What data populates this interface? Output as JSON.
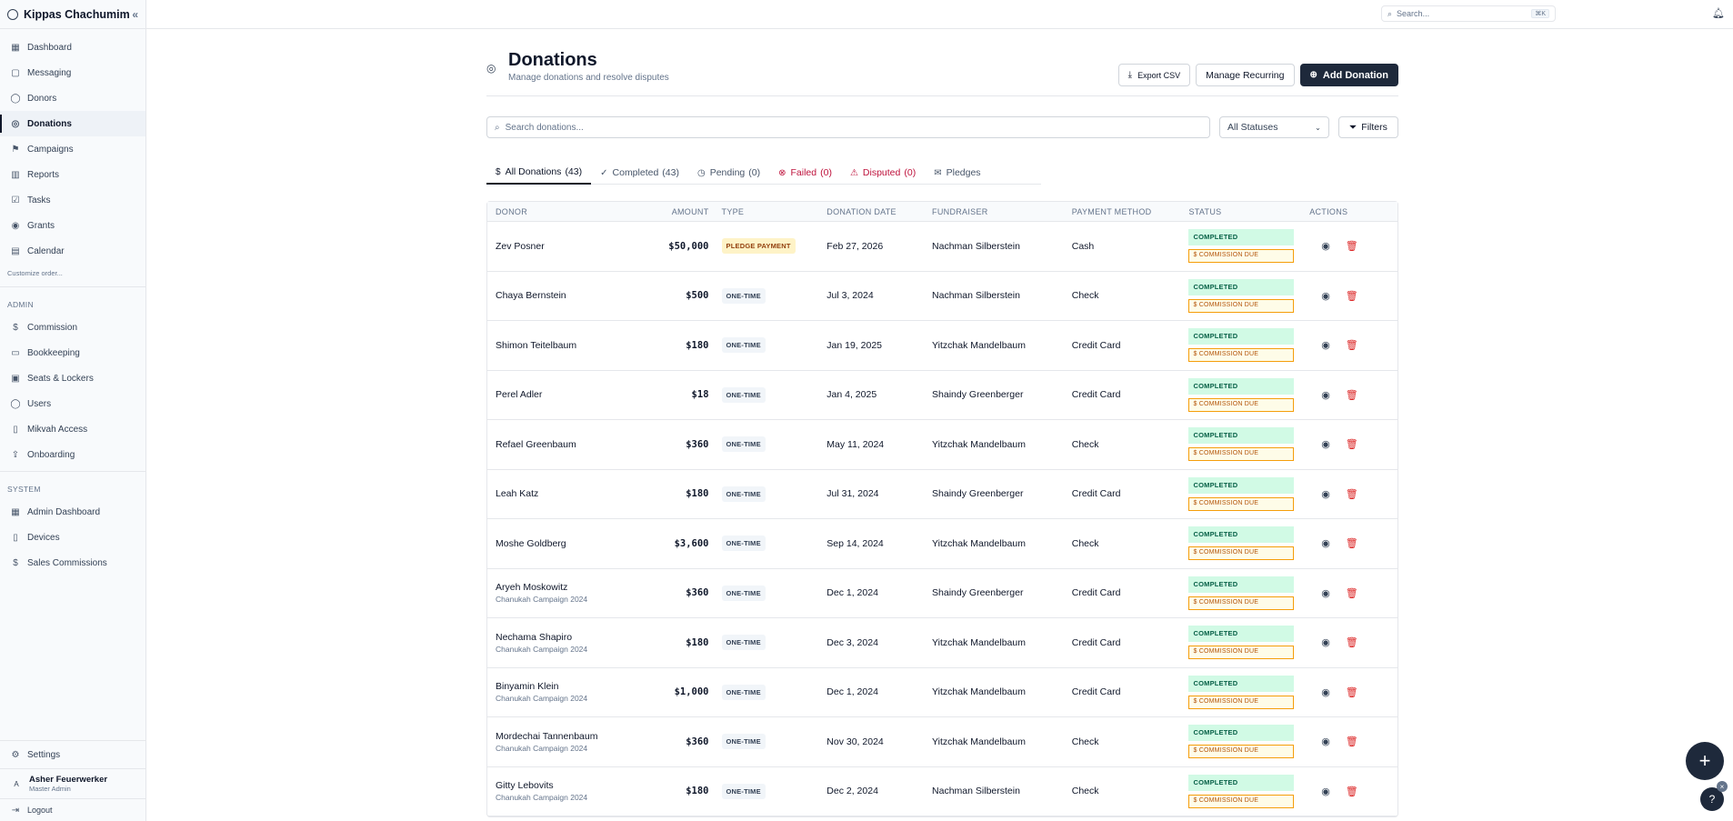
{
  "app": {
    "name": "Kippas Chachumim",
    "collapse_icon": "«"
  },
  "sidebar": {
    "items": [
      {
        "label": "Dashboard",
        "icon": "▦"
      },
      {
        "label": "Messaging",
        "icon": "▢"
      },
      {
        "label": "Donors",
        "icon": "◯"
      },
      {
        "label": "Donations",
        "icon": "◎",
        "active": true
      },
      {
        "label": "Campaigns",
        "icon": "⚑"
      },
      {
        "label": "Reports",
        "icon": "▥"
      },
      {
        "label": "Tasks",
        "icon": "☑"
      },
      {
        "label": "Grants",
        "icon": "◉"
      },
      {
        "label": "Calendar",
        "icon": "▤"
      }
    ],
    "customize": "Customize order...",
    "admin_label": "ADMIN",
    "admin_items": [
      {
        "label": "Commission",
        "icon": "$"
      },
      {
        "label": "Bookkeeping",
        "icon": "▭"
      },
      {
        "label": "Seats & Lockers",
        "icon": "▣"
      },
      {
        "label": "Users",
        "icon": "◯"
      },
      {
        "label": "Mikvah Access",
        "icon": "▯"
      },
      {
        "label": "Onboarding",
        "icon": "⇪"
      }
    ],
    "system_label": "SYSTEM",
    "system_items": [
      {
        "label": "Admin Dashboard",
        "icon": "▦"
      },
      {
        "label": "Devices",
        "icon": "▯"
      },
      {
        "label": "Sales Commissions",
        "icon": "$"
      }
    ],
    "settings": "Settings",
    "user": {
      "initial": "A",
      "name": "Asher Feuerwerker",
      "role": "Master Admin"
    },
    "logout": "Logout"
  },
  "topbar": {
    "search_placeholder": "Search...",
    "shortcut": "⌘K"
  },
  "page": {
    "title": "Donations",
    "subtitle": "Manage donations and resolve disputes",
    "export_label": "Export CSV",
    "recurring_label": "Manage Recurring",
    "add_label": "Add Donation"
  },
  "filters": {
    "search_placeholder": "Search donations...",
    "status_select": "All Statuses",
    "filters_label": "Filters"
  },
  "tabs": [
    {
      "label": "All Donations",
      "count": "(43)",
      "icon": "$"
    },
    {
      "label": "Completed",
      "count": "(43)",
      "icon": "✓"
    },
    {
      "label": "Pending",
      "count": "(0)",
      "icon": "◷"
    },
    {
      "label": "Failed",
      "count": "(0)",
      "icon": "⊗"
    },
    {
      "label": "Disputed",
      "count": "(0)",
      "icon": "⚠"
    },
    {
      "label": "Pledges",
      "count": "",
      "icon": "✉"
    }
  ],
  "table": {
    "headers": [
      "DONOR",
      "AMOUNT",
      "TYPE",
      "DONATION DATE",
      "FUNDRAISER",
      "PAYMENT METHOD",
      "STATUS",
      "ACTIONS"
    ],
    "status_label": "COMPLETED",
    "commission_label": "$ COMMISSION DUE",
    "rows": [
      {
        "donor": "Zev Posner",
        "campaign": "",
        "amount": "$50,000",
        "type": "PLEDGE PAYMENT",
        "date": "Feb 27, 2026",
        "fundraiser": "Nachman Silberstein",
        "method": "Cash"
      },
      {
        "donor": "Chaya Bernstein",
        "campaign": "",
        "amount": "$500",
        "type": "ONE-TIME",
        "date": "Jul 3, 2024",
        "fundraiser": "Nachman Silberstein",
        "method": "Check"
      },
      {
        "donor": "Shimon Teitelbaum",
        "campaign": "",
        "amount": "$180",
        "type": "ONE-TIME",
        "date": "Jan 19, 2025",
        "fundraiser": "Yitzchak Mandelbaum",
        "method": "Credit Card"
      },
      {
        "donor": "Perel Adler",
        "campaign": "",
        "amount": "$18",
        "type": "ONE-TIME",
        "date": "Jan 4, 2025",
        "fundraiser": "Shaindy Greenberger",
        "method": "Credit Card"
      },
      {
        "donor": "Refael Greenbaum",
        "campaign": "",
        "amount": "$360",
        "type": "ONE-TIME",
        "date": "May 11, 2024",
        "fundraiser": "Yitzchak Mandelbaum",
        "method": "Check"
      },
      {
        "donor": "Leah Katz",
        "campaign": "",
        "amount": "$180",
        "type": "ONE-TIME",
        "date": "Jul 31, 2024",
        "fundraiser": "Shaindy Greenberger",
        "method": "Credit Card"
      },
      {
        "donor": "Moshe Goldberg",
        "campaign": "",
        "amount": "$3,600",
        "type": "ONE-TIME",
        "date": "Sep 14, 2024",
        "fundraiser": "Yitzchak Mandelbaum",
        "method": "Check"
      },
      {
        "donor": "Aryeh Moskowitz",
        "campaign": "Chanukah Campaign 2024",
        "amount": "$360",
        "type": "ONE-TIME",
        "date": "Dec 1, 2024",
        "fundraiser": "Shaindy Greenberger",
        "method": "Credit Card"
      },
      {
        "donor": "Nechama Shapiro",
        "campaign": "Chanukah Campaign 2024",
        "amount": "$180",
        "type": "ONE-TIME",
        "date": "Dec 3, 2024",
        "fundraiser": "Yitzchak Mandelbaum",
        "method": "Credit Card"
      },
      {
        "donor": "Binyamin Klein",
        "campaign": "Chanukah Campaign 2024",
        "amount": "$1,000",
        "type": "ONE-TIME",
        "date": "Dec 1, 2024",
        "fundraiser": "Yitzchak Mandelbaum",
        "method": "Credit Card"
      },
      {
        "donor": "Mordechai Tannenbaum",
        "campaign": "Chanukah Campaign 2024",
        "amount": "$360",
        "type": "ONE-TIME",
        "date": "Nov 30, 2024",
        "fundraiser": "Yitzchak Mandelbaum",
        "method": "Check"
      },
      {
        "donor": "Gitty Lebovits",
        "campaign": "Chanukah Campaign 2024",
        "amount": "$180",
        "type": "ONE-TIME",
        "date": "Dec 2, 2024",
        "fundraiser": "Nachman Silberstein",
        "method": "Check"
      }
    ]
  },
  "fab": {
    "icon": "+",
    "help_icon": "?",
    "dismiss_icon": "×"
  }
}
